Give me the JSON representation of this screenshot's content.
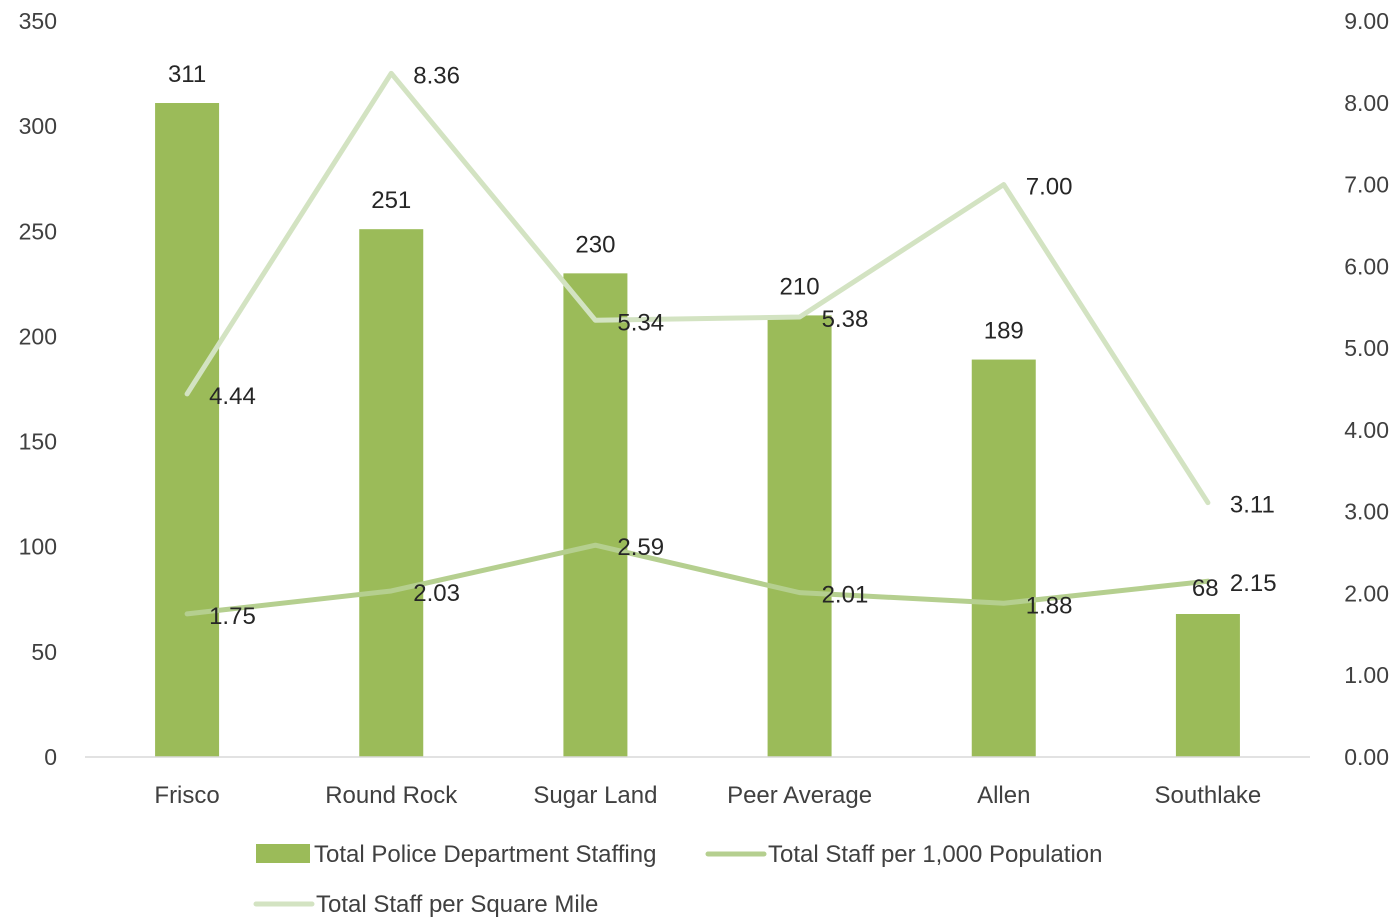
{
  "chart_data": {
    "type": "bar",
    "categories": [
      "Frisco",
      "Round Rock",
      "Sugar Land",
      "Peer Average",
      "Allen",
      "Southlake"
    ],
    "series": [
      {
        "name": "Total Police Department Staffing",
        "type": "bar",
        "axis": "left",
        "color": "#9bbb59",
        "values": [
          311,
          251,
          230,
          210,
          189,
          68
        ],
        "labels": [
          "311",
          "251",
          "230",
          "210",
          "189",
          "68"
        ]
      },
      {
        "name": "Total Staff per 1,000 Population",
        "type": "line",
        "axis": "right",
        "color": "#b5cf8f",
        "values": [
          1.75,
          2.03,
          2.59,
          2.01,
          1.88,
          2.15
        ],
        "labels": [
          "1.75",
          "2.03",
          "2.59",
          "2.01",
          "1.88",
          "2.15"
        ]
      },
      {
        "name": "Total Staff per Square Mile",
        "type": "line",
        "axis": "right",
        "color": "#d3e3c2",
        "values": [
          4.44,
          8.36,
          5.34,
          5.38,
          7.0,
          3.11
        ],
        "labels": [
          "4.44",
          "8.36",
          "5.34",
          "5.38",
          "7.00",
          "3.11"
        ]
      }
    ],
    "y_left": {
      "min": 0,
      "max": 350,
      "ticks": [
        "0",
        "50",
        "100",
        "150",
        "200",
        "250",
        "300",
        "350"
      ]
    },
    "y_right": {
      "min": 0,
      "max": 9,
      "ticks": [
        "0.00",
        "1.00",
        "2.00",
        "3.00",
        "4.00",
        "5.00",
        "6.00",
        "7.00",
        "8.00",
        "9.00"
      ]
    },
    "grid": false,
    "legend_position": "bottom"
  }
}
